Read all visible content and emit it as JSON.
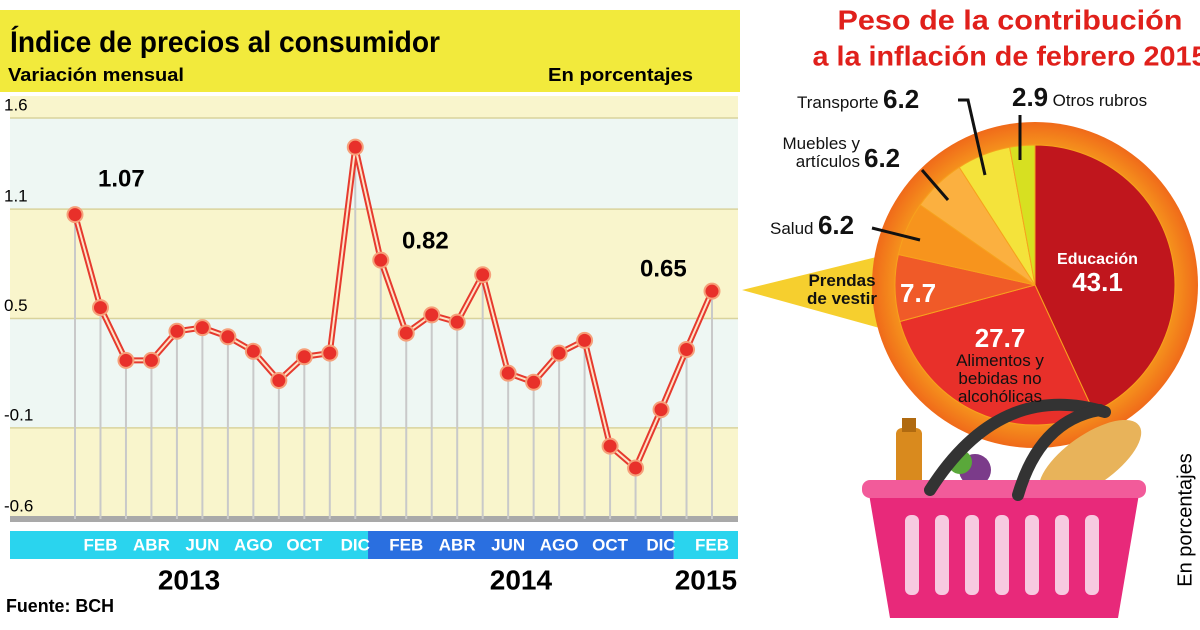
{
  "chart_data": [
    {
      "type": "line",
      "title": "Índice de precios al consumidor",
      "subtitle": "Variación mensual",
      "unit": "En porcentajes",
      "source": "Fuente: BCH",
      "categories": [
        null,
        "FEB",
        null,
        "ABR",
        null,
        "JUN",
        null,
        "AGO",
        null,
        "OCT",
        null,
        "DIC",
        null,
        "FEB",
        null,
        "ABR",
        null,
        "JUN",
        null,
        "AGO",
        null,
        "OCT",
        null,
        "DIC",
        null,
        "FEB"
      ],
      "years": [
        "2013",
        "2014",
        "2015"
      ],
      "values": [
        1.07,
        0.56,
        0.27,
        0.27,
        0.43,
        0.45,
        0.4,
        0.32,
        0.16,
        0.29,
        0.31,
        1.44,
        0.82,
        0.42,
        0.52,
        0.48,
        0.74,
        0.2,
        0.15,
        0.31,
        0.38,
        -0.2,
        -0.32,
        0.0,
        0.33,
        0.65
      ],
      "color": "#e63a2e",
      "ylim": [
        -0.6,
        1.6
      ],
      "yticks": [
        -0.6,
        -0.1,
        0.5,
        1.1,
        1.6
      ],
      "grid": true
    },
    {
      "type": "pie",
      "title_lines": [
        "Peso de la contribución",
        "a la inflación de febrero 2015"
      ],
      "unit": "En porcentajes",
      "categories": [
        "Educación",
        "Alimentos y bebidas no alcohólicas",
        "Prendas de vestir",
        "Salud",
        "Muebles y artículos",
        "Transporte",
        "Otros rubros"
      ],
      "values": [
        43.1,
        27.7,
        7.7,
        6.2,
        6.2,
        6.2,
        2.9
      ],
      "colors": [
        "#c0161d",
        "#e8302a",
        "#f05a28",
        "#f7941d",
        "#fbb040",
        "#f4e33b",
        "#d7e021"
      ]
    }
  ]
}
